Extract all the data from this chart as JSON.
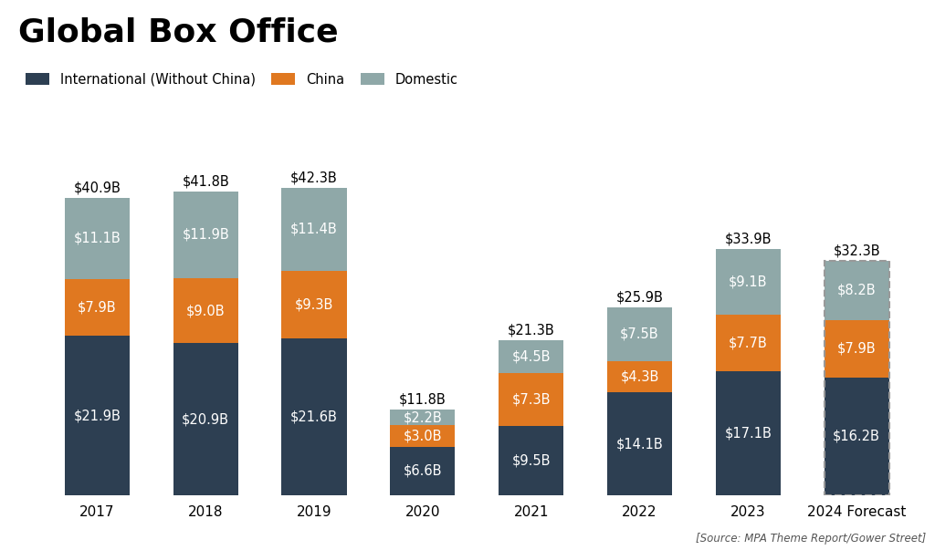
{
  "title": "Global Box Office",
  "source_text": "[Source: MPA Theme Report/Gower Street]",
  "categories": [
    "2017",
    "2018",
    "2019",
    "2020",
    "2021",
    "2022",
    "2023",
    "2024 Forecast"
  ],
  "international": [
    21.9,
    20.9,
    21.6,
    6.6,
    9.5,
    14.1,
    17.1,
    16.2
  ],
  "china": [
    7.9,
    9.0,
    9.3,
    3.0,
    7.3,
    4.3,
    7.7,
    7.9
  ],
  "domestic": [
    11.1,
    11.9,
    11.4,
    2.2,
    4.5,
    7.5,
    9.1,
    8.2
  ],
  "totals": [
    40.9,
    41.8,
    42.3,
    11.8,
    21.3,
    25.9,
    33.9,
    32.3
  ],
  "color_international": "#2d3f52",
  "color_china": "#e07820",
  "color_domestic": "#8fa8a8",
  "color_background": "#ffffff",
  "bar_width": 0.6,
  "forecast_index": 7,
  "title_fontsize": 26,
  "label_fontsize": 10.5,
  "total_fontsize": 10.5,
  "legend_fontsize": 10.5,
  "source_fontsize": 8.5,
  "ylim": [
    0,
    50
  ]
}
